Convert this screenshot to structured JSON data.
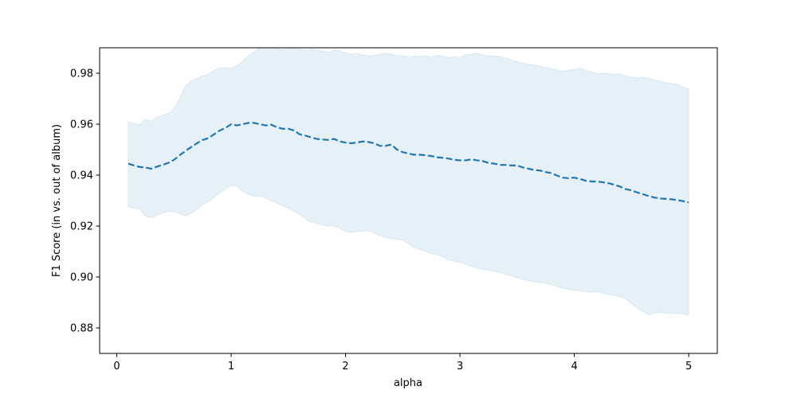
{
  "chart_data": {
    "type": "line",
    "title": "",
    "xlabel": "alpha",
    "ylabel": "F1 Score (in vs. out of album)",
    "xlim": [
      -0.15,
      5.25
    ],
    "ylim": [
      0.87,
      0.99
    ],
    "xticks": [
      0,
      1,
      2,
      3,
      4,
      5
    ],
    "xtick_labels": [
      "0",
      "1",
      "2",
      "3",
      "4",
      "5"
    ],
    "yticks": [
      0.88,
      0.9,
      0.92,
      0.94,
      0.96,
      0.98
    ],
    "ytick_labels": [
      "0.88",
      "0.90",
      "0.92",
      "0.94",
      "0.96",
      "0.98"
    ],
    "grid": false,
    "colors": {
      "line": "#1f77b4",
      "band": "#1f77b4"
    },
    "series": [
      {
        "style": "dashed",
        "x": [
          0.1,
          0.15,
          0.2,
          0.25,
          0.3,
          0.35,
          0.4,
          0.45,
          0.5,
          0.55,
          0.6,
          0.65,
          0.7,
          0.75,
          0.8,
          0.85,
          0.9,
          0.95,
          1.0,
          1.05,
          1.1,
          1.15,
          1.2,
          1.25,
          1.3,
          1.35,
          1.4,
          1.45,
          1.5,
          1.55,
          1.6,
          1.65,
          1.7,
          1.75,
          1.8,
          1.85,
          1.9,
          1.95,
          2.0,
          2.05,
          2.1,
          2.15,
          2.2,
          2.25,
          2.3,
          2.35,
          2.4,
          2.45,
          2.5,
          2.55,
          2.6,
          2.65,
          2.7,
          2.75,
          2.8,
          2.85,
          2.9,
          2.95,
          3.0,
          3.05,
          3.1,
          3.15,
          3.2,
          3.25,
          3.3,
          3.35,
          3.4,
          3.45,
          3.5,
          3.55,
          3.6,
          3.65,
          3.7,
          3.75,
          3.8,
          3.85,
          3.9,
          3.95,
          4.0,
          4.05,
          4.1,
          4.15,
          4.2,
          4.25,
          4.3,
          4.35,
          4.4,
          4.45,
          4.5,
          4.55,
          4.6,
          4.65,
          4.7,
          4.75,
          4.8,
          4.85,
          4.9,
          4.95,
          5.0
        ],
        "y": [
          0.9445,
          0.9438,
          0.9432,
          0.943,
          0.9425,
          0.9433,
          0.944,
          0.9448,
          0.946,
          0.9478,
          0.9495,
          0.951,
          0.9525,
          0.9538,
          0.9545,
          0.956,
          0.9575,
          0.9585,
          0.96,
          0.9595,
          0.96,
          0.9605,
          0.9605,
          0.96,
          0.9595,
          0.9598,
          0.9588,
          0.9582,
          0.9582,
          0.9575,
          0.956,
          0.9555,
          0.9548,
          0.9542,
          0.954,
          0.9538,
          0.9542,
          0.9532,
          0.9528,
          0.9525,
          0.9528,
          0.9532,
          0.953,
          0.9525,
          0.9515,
          0.9515,
          0.952,
          0.95,
          0.949,
          0.9485,
          0.948,
          0.948,
          0.9478,
          0.9475,
          0.947,
          0.9468,
          0.9465,
          0.946,
          0.9458,
          0.9458,
          0.9462,
          0.9458,
          0.9455,
          0.9448,
          0.9445,
          0.944,
          0.944,
          0.9438,
          0.9438,
          0.943,
          0.9425,
          0.942,
          0.9418,
          0.9412,
          0.9408,
          0.9398,
          0.939,
          0.9388,
          0.939,
          0.9385,
          0.9378,
          0.9375,
          0.9375,
          0.9372,
          0.9368,
          0.9362,
          0.9355,
          0.9345,
          0.934,
          0.9332,
          0.9325,
          0.9318,
          0.9312,
          0.9308,
          0.9307,
          0.9305,
          0.9302,
          0.9298,
          0.9293
        ],
        "lower": [
          0.9275,
          0.927,
          0.9268,
          0.9238,
          0.9232,
          0.9242,
          0.925,
          0.9258,
          0.9258,
          0.9248,
          0.924,
          0.925,
          0.9265,
          0.9285,
          0.9295,
          0.9312,
          0.933,
          0.9345,
          0.936,
          0.9358,
          0.9335,
          0.9325,
          0.9318,
          0.9318,
          0.931,
          0.9298,
          0.929,
          0.928,
          0.927,
          0.9258,
          0.9245,
          0.9228,
          0.9215,
          0.921,
          0.9205,
          0.92,
          0.92,
          0.919,
          0.9178,
          0.9175,
          0.9178,
          0.918,
          0.9182,
          0.9172,
          0.9162,
          0.9155,
          0.915,
          0.9148,
          0.9145,
          0.913,
          0.9115,
          0.9108,
          0.91,
          0.9092,
          0.9088,
          0.908,
          0.9068,
          0.9062,
          0.9058,
          0.905,
          0.9042,
          0.9035,
          0.903,
          0.9028,
          0.9022,
          0.9018,
          0.901,
          0.9005,
          0.8998,
          0.899,
          0.8985,
          0.8982,
          0.8978,
          0.8975,
          0.897,
          0.8962,
          0.8955,
          0.895,
          0.8948,
          0.8945,
          0.8942,
          0.894,
          0.8942,
          0.8935,
          0.8932,
          0.8928,
          0.8922,
          0.8915,
          0.8895,
          0.8878,
          0.8865,
          0.885,
          0.886,
          0.8862,
          0.8858,
          0.8858,
          0.8858,
          0.8855,
          0.885
        ],
        "upper": [
          0.961,
          0.9602,
          0.9598,
          0.962,
          0.9612,
          0.9628,
          0.9635,
          0.9642,
          0.966,
          0.97,
          0.975,
          0.977,
          0.978,
          0.979,
          0.9795,
          0.9812,
          0.982,
          0.9822,
          0.9818,
          0.983,
          0.9845,
          0.9868,
          0.9885,
          0.99,
          0.9902,
          0.99,
          0.9898,
          0.9892,
          0.9898,
          0.9902,
          0.9895,
          0.9888,
          0.9895,
          0.989,
          0.9888,
          0.9882,
          0.989,
          0.9888,
          0.988,
          0.9875,
          0.9878,
          0.9872,
          0.9868,
          0.987,
          0.9875,
          0.9878,
          0.9875,
          0.9868,
          0.9868,
          0.9862,
          0.9868,
          0.9865,
          0.9868,
          0.9862,
          0.987,
          0.9868,
          0.986,
          0.9865,
          0.9862,
          0.9872,
          0.9875,
          0.9878,
          0.9872,
          0.9868,
          0.9868,
          0.9865,
          0.986,
          0.9852,
          0.9845,
          0.984,
          0.9835,
          0.9832,
          0.9828,
          0.9822,
          0.9818,
          0.9812,
          0.9808,
          0.9812,
          0.9815,
          0.982,
          0.9812,
          0.9805,
          0.98,
          0.98,
          0.9798,
          0.9795,
          0.9798,
          0.979,
          0.9785,
          0.9782,
          0.9785,
          0.978,
          0.9775,
          0.977,
          0.9762,
          0.976,
          0.9758,
          0.9745,
          0.974
        ]
      }
    ]
  }
}
